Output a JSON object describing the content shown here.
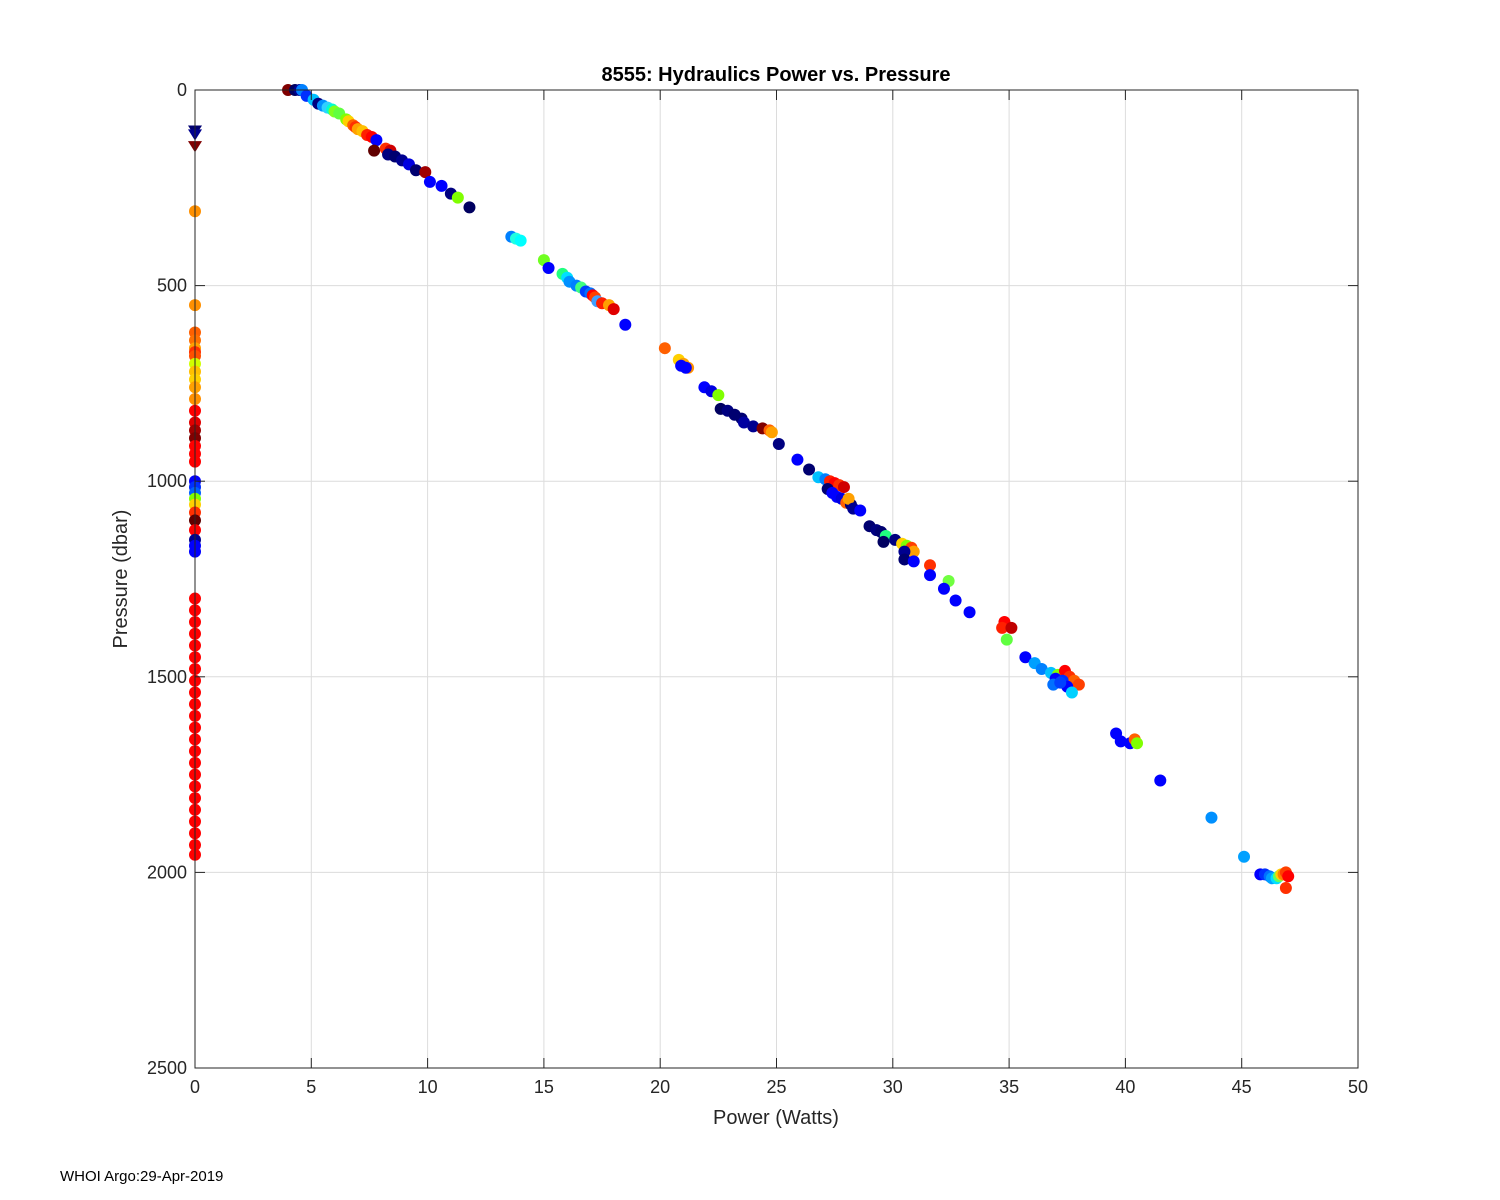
{
  "footer": "WHOI Argo:29-Apr-2019",
  "chart_data": {
    "type": "scatter",
    "title": "8555: Hydraulics Power vs. Pressure",
    "xlabel": "Power (Watts)",
    "ylabel": "Pressure (dbar)",
    "xlim": [
      0,
      50
    ],
    "ylim": [
      0,
      2500
    ],
    "y_reversed": true,
    "xticks": [
      "0",
      "5",
      "10",
      "15",
      "20",
      "25",
      "30",
      "35",
      "40",
      "45",
      "50"
    ],
    "yticks": [
      "0",
      "500",
      "1000",
      "1500",
      "2000",
      "2500"
    ],
    "grid": true,
    "colormap": "jet",
    "series": [
      {
        "marker": "circle",
        "points": [
          [
            4.0,
            0,
            "#800000"
          ],
          [
            4.3,
            0,
            "#000060"
          ],
          [
            4.5,
            0,
            "#000090"
          ],
          [
            4.6,
            0,
            "#0080ff"
          ],
          [
            4.8,
            15,
            "#0030ff"
          ],
          [
            5.1,
            25,
            "#00c0ff"
          ],
          [
            5.3,
            35,
            "#000080"
          ],
          [
            5.5,
            40,
            "#0090ff"
          ],
          [
            5.7,
            45,
            "#30d0ff"
          ],
          [
            5.9,
            50,
            "#00ffd0"
          ],
          [
            6.0,
            55,
            "#80ff20"
          ],
          [
            6.2,
            60,
            "#60ff40"
          ],
          [
            6.5,
            75,
            "#80ff00"
          ],
          [
            6.6,
            80,
            "#ffd000"
          ],
          [
            6.8,
            90,
            "#ff6000"
          ],
          [
            6.9,
            95,
            "#ff3000"
          ],
          [
            7.0,
            100,
            "#ffa000"
          ],
          [
            7.2,
            105,
            "#ffc000"
          ],
          [
            7.4,
            115,
            "#ff2000"
          ],
          [
            7.6,
            120,
            "#ff0000"
          ],
          [
            7.8,
            128,
            "#0000ff"
          ],
          [
            7.7,
            155,
            "#600000"
          ],
          [
            8.2,
            150,
            "#ff3000"
          ],
          [
            8.4,
            155,
            "#d00000"
          ],
          [
            8.3,
            165,
            "#000080"
          ],
          [
            8.6,
            170,
            "#000070"
          ],
          [
            8.9,
            180,
            "#000090"
          ],
          [
            9.2,
            190,
            "#0000e0"
          ],
          [
            9.5,
            205,
            "#000070"
          ],
          [
            9.9,
            210,
            "#a00000"
          ],
          [
            10.1,
            235,
            "#0000ff"
          ],
          [
            10.6,
            245,
            "#0000ff"
          ],
          [
            11.0,
            265,
            "#000080"
          ],
          [
            11.3,
            275,
            "#80ff00"
          ],
          [
            11.8,
            300,
            "#000060"
          ],
          [
            13.6,
            375,
            "#0080ff"
          ],
          [
            13.8,
            380,
            "#20ffe0"
          ],
          [
            14.0,
            385,
            "#00ffff"
          ],
          [
            15.0,
            435,
            "#70ff20"
          ],
          [
            15.2,
            455,
            "#0000ff"
          ],
          [
            15.8,
            470,
            "#20ff80"
          ],
          [
            16.0,
            480,
            "#00e0ff"
          ],
          [
            16.1,
            490,
            "#0090ff"
          ],
          [
            16.4,
            500,
            "#0080ff"
          ],
          [
            16.6,
            505,
            "#40ff80"
          ],
          [
            16.8,
            515,
            "#0040ff"
          ],
          [
            17.0,
            520,
            "#0070ff"
          ],
          [
            17.1,
            525,
            "#ff0000"
          ],
          [
            17.2,
            530,
            "#ff4000"
          ],
          [
            17.3,
            540,
            "#40a0ff"
          ],
          [
            17.5,
            545,
            "#ff2000"
          ],
          [
            17.8,
            550,
            "#ffa000"
          ],
          [
            18.0,
            560,
            "#e00000"
          ],
          [
            18.5,
            600,
            "#0000ff"
          ],
          [
            20.2,
            660,
            "#ff6000"
          ],
          [
            20.8,
            690,
            "#ffd000"
          ],
          [
            21.0,
            700,
            "#ffa000"
          ],
          [
            21.2,
            710,
            "#ff9000"
          ],
          [
            20.9,
            705,
            "#0000ff"
          ],
          [
            21.1,
            710,
            "#0000ff"
          ],
          [
            21.9,
            760,
            "#0000ff"
          ],
          [
            22.2,
            770,
            "#0000e0"
          ],
          [
            22.5,
            780,
            "#80ff00"
          ],
          [
            22.6,
            815,
            "#000060"
          ],
          [
            22.9,
            820,
            "#000080"
          ],
          [
            23.2,
            830,
            "#000070"
          ],
          [
            23.5,
            840,
            "#000070"
          ],
          [
            23.6,
            850,
            "#0000a0"
          ],
          [
            24.0,
            860,
            "#000090"
          ],
          [
            24.4,
            865,
            "#800000"
          ],
          [
            24.7,
            870,
            "#ff6000"
          ],
          [
            24.8,
            875,
            "#ffa000"
          ],
          [
            25.1,
            905,
            "#000080"
          ],
          [
            25.9,
            945,
            "#0000ff"
          ],
          [
            26.4,
            970,
            "#000070"
          ],
          [
            26.8,
            990,
            "#00c0ff"
          ],
          [
            27.1,
            995,
            "#0080ff"
          ],
          [
            27.3,
            1000,
            "#ff2000"
          ],
          [
            27.5,
            1005,
            "#ff0000"
          ],
          [
            27.7,
            1010,
            "#ff3000"
          ],
          [
            27.9,
            1015,
            "#d00000"
          ],
          [
            27.2,
            1020,
            "#000070"
          ],
          [
            27.4,
            1030,
            "#0000ff"
          ],
          [
            27.6,
            1040,
            "#0000ff"
          ],
          [
            27.8,
            1045,
            "#0000e0"
          ],
          [
            28.0,
            1055,
            "#ff6000"
          ],
          [
            28.2,
            1060,
            "#000070"
          ],
          [
            28.1,
            1045,
            "#ffa000"
          ],
          [
            28.3,
            1070,
            "#000090"
          ],
          [
            28.6,
            1075,
            "#0000ff"
          ],
          [
            29.0,
            1115,
            "#000070"
          ],
          [
            29.3,
            1125,
            "#000080"
          ],
          [
            29.5,
            1130,
            "#000070"
          ],
          [
            29.7,
            1140,
            "#20ff80"
          ],
          [
            29.6,
            1155,
            "#000060"
          ],
          [
            30.1,
            1150,
            "#000080"
          ],
          [
            30.4,
            1160,
            "#ffd000"
          ],
          [
            30.6,
            1165,
            "#80ff00"
          ],
          [
            30.8,
            1170,
            "#ff4000"
          ],
          [
            30.9,
            1180,
            "#ffa000"
          ],
          [
            30.5,
            1180,
            "#000090"
          ],
          [
            30.5,
            1200,
            "#000070"
          ],
          [
            30.9,
            1205,
            "#0000ff"
          ],
          [
            31.6,
            1215,
            "#ff3000"
          ],
          [
            31.6,
            1240,
            "#0000ff"
          ],
          [
            32.4,
            1255,
            "#70ff40"
          ],
          [
            32.2,
            1275,
            "#0000ff"
          ],
          [
            32.7,
            1305,
            "#0000ff"
          ],
          [
            33.3,
            1335,
            "#0000ff"
          ],
          [
            34.8,
            1360,
            "#ff0000"
          ],
          [
            34.7,
            1375,
            "#ff2000"
          ],
          [
            35.1,
            1375,
            "#c00000"
          ],
          [
            34.9,
            1405,
            "#60ff40"
          ],
          [
            35.7,
            1450,
            "#0000ff"
          ],
          [
            36.1,
            1465,
            "#00a0ff"
          ],
          [
            36.4,
            1480,
            "#0080ff"
          ],
          [
            36.8,
            1490,
            "#00c0ff"
          ],
          [
            37.1,
            1495,
            "#80ff00"
          ],
          [
            37.4,
            1485,
            "#ff0000"
          ],
          [
            37.6,
            1500,
            "#ff3000"
          ],
          [
            37.8,
            1510,
            "#ff6000"
          ],
          [
            38.0,
            1520,
            "#ff4000"
          ],
          [
            37.0,
            1505,
            "#0000ff"
          ],
          [
            37.3,
            1510,
            "#0030ff"
          ],
          [
            36.9,
            1520,
            "#0070ff"
          ],
          [
            37.5,
            1525,
            "#0000ff"
          ],
          [
            37.7,
            1540,
            "#00d0ff"
          ],
          [
            37.2,
            1515,
            "#0040ff"
          ],
          [
            39.6,
            1645,
            "#0000ff"
          ],
          [
            39.8,
            1665,
            "#0000ff"
          ],
          [
            40.2,
            1670,
            "#0000ff"
          ],
          [
            40.4,
            1660,
            "#ff6000"
          ],
          [
            40.5,
            1670,
            "#80ff00"
          ],
          [
            41.5,
            1765,
            "#0000ff"
          ],
          [
            43.7,
            1860,
            "#0090ff"
          ],
          [
            45.1,
            1960,
            "#00a0ff"
          ],
          [
            45.8,
            2005,
            "#0000ff"
          ],
          [
            46.0,
            2005,
            "#0030ff"
          ],
          [
            46.2,
            2010,
            "#0070ff"
          ],
          [
            46.3,
            2015,
            "#00a0ff"
          ],
          [
            46.5,
            2015,
            "#00e0ff"
          ],
          [
            46.6,
            2010,
            "#60ff60"
          ],
          [
            46.7,
            2005,
            "#ffd000"
          ],
          [
            46.8,
            2005,
            "#ff8000"
          ],
          [
            46.9,
            2000,
            "#ff4000"
          ],
          [
            47.0,
            2010,
            "#ff0000"
          ],
          [
            46.9,
            2040,
            "#ff3000"
          ],
          [
            0,
            310,
            "#ff9000"
          ],
          [
            0,
            550,
            "#ff9000"
          ],
          [
            0,
            620,
            "#ff6000"
          ],
          [
            0,
            640,
            "#ff7000"
          ],
          [
            0,
            660,
            "#ffa000"
          ],
          [
            0,
            670,
            "#ff3000"
          ],
          [
            0,
            680,
            "#ff5000"
          ],
          [
            0,
            700,
            "#d0ff00"
          ],
          [
            0,
            720,
            "#ffc000"
          ],
          [
            0,
            740,
            "#ffd000"
          ],
          [
            0,
            760,
            "#ffa000"
          ],
          [
            0,
            790,
            "#ff9000"
          ],
          [
            0,
            820,
            "#ff0000"
          ],
          [
            0,
            850,
            "#e00000"
          ],
          [
            0,
            870,
            "#a00000"
          ],
          [
            0,
            890,
            "#800000"
          ],
          [
            0,
            910,
            "#ff0000"
          ],
          [
            0,
            930,
            "#ff0000"
          ],
          [
            0,
            950,
            "#ff0000"
          ],
          [
            0,
            1000,
            "#0000ff"
          ],
          [
            0,
            1015,
            "#0030ff"
          ],
          [
            0,
            1030,
            "#0060ff"
          ],
          [
            0,
            1045,
            "#80ff00"
          ],
          [
            0,
            1060,
            "#ffd000"
          ],
          [
            0,
            1080,
            "#ff3000"
          ],
          [
            0,
            1100,
            "#600000"
          ],
          [
            0,
            1125,
            "#ff0000"
          ],
          [
            0,
            1150,
            "#000090"
          ],
          [
            0,
            1165,
            "#0000ff"
          ],
          [
            0,
            1180,
            "#0000ff"
          ],
          [
            0,
            1300,
            "#ff0000"
          ],
          [
            0,
            1330,
            "#ff0000"
          ],
          [
            0,
            1360,
            "#ff0000"
          ],
          [
            0,
            1390,
            "#ff0000"
          ],
          [
            0,
            1420,
            "#ff0000"
          ],
          [
            0,
            1450,
            "#ff0000"
          ],
          [
            0,
            1480,
            "#ff0000"
          ],
          [
            0,
            1510,
            "#ff0000"
          ],
          [
            0,
            1540,
            "#ff0000"
          ],
          [
            0,
            1570,
            "#ff0000"
          ],
          [
            0,
            1600,
            "#ff0000"
          ],
          [
            0,
            1630,
            "#ff0000"
          ],
          [
            0,
            1660,
            "#ff0000"
          ],
          [
            0,
            1690,
            "#ff0000"
          ],
          [
            0,
            1720,
            "#ff0000"
          ],
          [
            0,
            1750,
            "#ff0000"
          ],
          [
            0,
            1780,
            "#ff0000"
          ],
          [
            0,
            1810,
            "#ff0000"
          ],
          [
            0,
            1840,
            "#ff0000"
          ],
          [
            0,
            1870,
            "#ff0000"
          ],
          [
            0,
            1900,
            "#ff0000"
          ],
          [
            0,
            1930,
            "#ff0000"
          ],
          [
            0,
            1955,
            "#ff0000"
          ]
        ]
      },
      {
        "marker": "triangle-down",
        "points": [
          [
            0,
            105,
            "#000070"
          ],
          [
            0,
            115,
            "#000090"
          ],
          [
            0,
            145,
            "#800000"
          ]
        ]
      }
    ]
  }
}
